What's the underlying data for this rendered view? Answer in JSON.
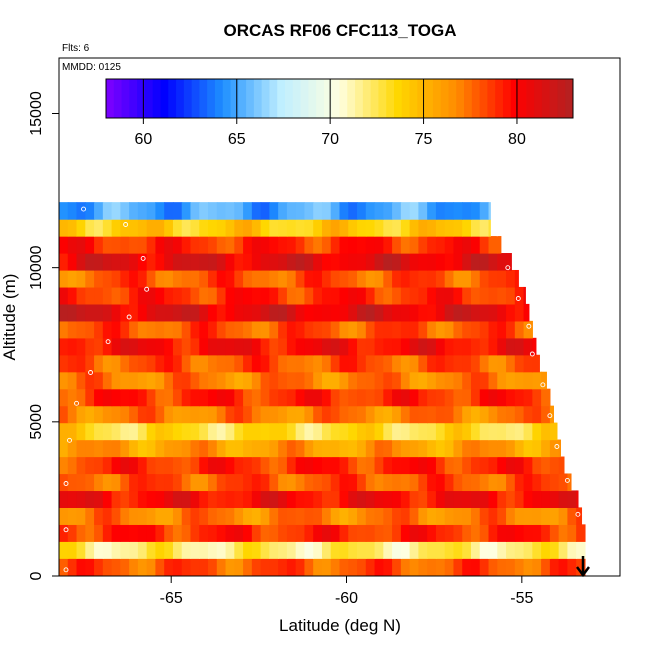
{
  "chart_data": {
    "type": "heatmap",
    "title": "ORCAS RF06 CFC113_TOGA",
    "flights_label": "Flts: 6",
    "date_label": "MMDD: 0125",
    "xlabel": "Latitude (deg N)",
    "ylabel": "Altitude (m)",
    "xlim": [
      -68.2,
      -52.2
    ],
    "ylim": [
      0,
      16800
    ],
    "x_ticks": [
      -65,
      -60,
      -55
    ],
    "x_tick_labels": [
      "-65",
      "-60",
      "-55"
    ],
    "y_ticks": [
      0,
      5000,
      10000,
      15000
    ],
    "y_tick_labels": [
      "0",
      "5000",
      "10000",
      "15000"
    ],
    "colorbar": {
      "range": [
        58,
        83
      ],
      "ticks": [
        60,
        65,
        70,
        75,
        80
      ],
      "tick_labels": [
        "60",
        "65",
        "70",
        "75",
        "80"
      ],
      "colors": [
        "#7f00ff",
        "#0000ff",
        "#1e90ff",
        "#bfefff",
        "#ffffe0",
        "#ffd700",
        "#ff8c00",
        "#ff0000",
        "#b22222"
      ]
    },
    "altitude_bands": [
      {
        "alt": 300,
        "value": 78,
        "lat_max": -53.2
      },
      {
        "alt": 850,
        "value": 72,
        "lat_max": -53.2
      },
      {
        "alt": 1400,
        "value": 79,
        "lat_max": -53.2
      },
      {
        "alt": 1950,
        "value": 77,
        "lat_max": -53.3
      },
      {
        "alt": 2500,
        "value": 80,
        "lat_max": -53.4
      },
      {
        "alt": 3050,
        "value": 78,
        "lat_max": -53.6
      },
      {
        "alt": 3600,
        "value": 79,
        "lat_max": -53.8
      },
      {
        "alt": 4150,
        "value": 76,
        "lat_max": -53.9
      },
      {
        "alt": 4700,
        "value": 73,
        "lat_max": -54.0
      },
      {
        "alt": 5250,
        "value": 77,
        "lat_max": -54.1
      },
      {
        "alt": 5800,
        "value": 79,
        "lat_max": -54.2
      },
      {
        "alt": 6350,
        "value": 77,
        "lat_max": -54.3
      },
      {
        "alt": 6900,
        "value": 78,
        "lat_max": -54.5
      },
      {
        "alt": 7450,
        "value": 80,
        "lat_max": -54.6
      },
      {
        "alt": 8000,
        "value": 78,
        "lat_max": -54.7
      },
      {
        "alt": 8550,
        "value": 81,
        "lat_max": -54.8
      },
      {
        "alt": 9100,
        "value": 79,
        "lat_max": -54.9
      },
      {
        "alt": 9650,
        "value": 78,
        "lat_max": -55.1
      },
      {
        "alt": 10200,
        "value": 81,
        "lat_max": -55.3
      },
      {
        "alt": 10750,
        "value": 79,
        "lat_max": -55.6
      },
      {
        "alt": 11300,
        "value": 74,
        "lat_max": -55.9
      },
      {
        "alt": 11850,
        "value": 65,
        "lat_max": -55.9
      }
    ],
    "flight_track_points": [
      {
        "lat": -67.5,
        "alt": 11900
      },
      {
        "lat": -66.3,
        "alt": 11400
      },
      {
        "lat": -65.8,
        "alt": 10300
      },
      {
        "lat": -65.7,
        "alt": 9300
      },
      {
        "lat": -66.2,
        "alt": 8400
      },
      {
        "lat": -66.8,
        "alt": 7600
      },
      {
        "lat": -67.3,
        "alt": 6600
      },
      {
        "lat": -67.7,
        "alt": 5600
      },
      {
        "lat": -67.9,
        "alt": 4400
      },
      {
        "lat": -68.0,
        "alt": 3000
      },
      {
        "lat": -68.0,
        "alt": 1500
      },
      {
        "lat": -68.0,
        "alt": 200
      },
      {
        "lat": -55.7,
        "alt": 11100
      },
      {
        "lat": -55.4,
        "alt": 10000
      },
      {
        "lat": -55.1,
        "alt": 9000
      },
      {
        "lat": -54.8,
        "alt": 8100
      },
      {
        "lat": -54.7,
        "alt": 7200
      },
      {
        "lat": -54.4,
        "alt": 6200
      },
      {
        "lat": -54.2,
        "alt": 5200
      },
      {
        "lat": -54.0,
        "alt": 4200
      },
      {
        "lat": -53.7,
        "alt": 3100
      },
      {
        "lat": -53.4,
        "alt": 2000
      },
      {
        "lat": -53.1,
        "alt": 600
      }
    ]
  }
}
